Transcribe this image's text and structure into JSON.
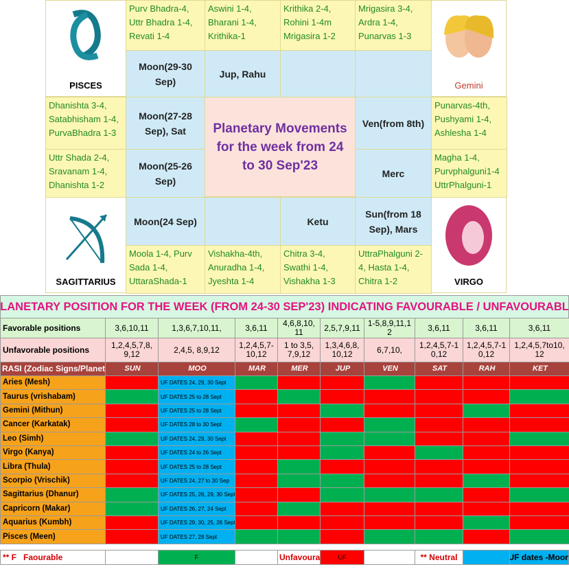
{
  "zodiac_chart": {
    "title": "Planetary Movements for the week from 24 to 30 Sep'23",
    "sign_labels": [
      "PISCES",
      "Gemini",
      "SAGITTARIUS",
      "VIRGO"
    ],
    "nakshatras": [
      "Purv Bhadra-4, Uttr Bhadra 1-4, Revati 1-4",
      "Aswini 1-4, Bharani 1-4, Krithika-1",
      "Krithika 2-4, Rohini 1-4m Mrigasira 1-2",
      "Mrigasira 3-4, Ardra 1-4, Punarvas 1-3",
      "Punarvas-4th, Pushyami 1-4, Ashlesha 1-4",
      "Magha 1-4, Purvphalguni1-4 UttrPhalguni-1",
      "UttraPhalguni 2-4,  Hasta 1-4, Chitra 1-2",
      "Chitra 3-4, Swathi 1-4, Vishakha 1-3",
      "Vishakha-4th, Anuradha 1-4, Jyeshta 1-4",
      "Moola 1-4, Purv Sada 1-4, UttaraShada-1",
      "Uttr Shada 2-4, Sravanam 1-4, Dhanishta 1-2",
      "Dhanishta 3-4, Satabhisham 1-4, PurvaBhadra 1-3"
    ],
    "planets": [
      "Moon(29-30 Sep)",
      "Jup, Rahu",
      "Ven(from 8th)",
      "Merc",
      "Sun(from 18 Sep), Mars",
      "Ketu",
      "Moon(24 Sep)",
      "Moon(25-26 Sep)",
      "Moon(27-28 Sep), Sat"
    ]
  },
  "table": {
    "title": "PLANETARY POSITION FOR THE WEEK (FROM 24-30 SEP'23) INDICATING FAVOURABLE / UNFAVOURABLE",
    "favorable": {
      "label": "Favorable positions",
      "values": [
        "3,6,10,11",
        "1,3,6,7,10,11,",
        "3,6,11",
        "4,6,8,10,11",
        "2,5,7,9,11",
        "1-5,8,9,11,12",
        "3,6,11",
        "3,6,11",
        "3,6,11"
      ]
    },
    "unfavorable": {
      "label": "Unfavorable positions",
      "values": [
        "1,2,4,5,7,8,9,12",
        "2,4,5, 8,9,12",
        "1,2,4,5,7-10,12",
        "1 to 3,5,7,9,12",
        "1,3,4,6,8,10,12",
        "6,7,10,",
        "1,2,4,5,7-10,12",
        "1,2,4,5,7-10,12",
        "1,2,4,5,7to10,12"
      ]
    },
    "header": [
      "RASI (Zodiac Signs/Planets",
      "SUN",
      "MOO",
      "MAR",
      "MER",
      "JUP",
      "VEN",
      "SAT",
      "RAH",
      "KET"
    ],
    "palette": {
      "F": "#00b050",
      "UF": "#ff0000",
      "moon": "#00b0f0"
    },
    "rows": [
      {
        "rasi": "Aries (Mesh)",
        "moon": "UF DATES 24, 29, 30 Sept",
        "status": [
          "UF",
          "F",
          "UF",
          "UF",
          "F",
          "UF",
          "UF",
          "UF"
        ]
      },
      {
        "rasi": "Taurus (vrishabam)",
        "moon": "UF DATES 25 to 28 Sept",
        "status": [
          "F",
          "UF",
          "F",
          "UF",
          "UF",
          "UF",
          "UF",
          "F"
        ]
      },
      {
        "rasi": "Gemini (Mithun)",
        "moon": "UF DATES 25 to 28 Sept",
        "status": [
          "UF",
          "UF",
          "UF",
          "F",
          "UF",
          "UF",
          "F",
          "UF"
        ]
      },
      {
        "rasi": "Cancer (Karkatak)",
        "moon": "UF DATES 28 to 30 Sept",
        "status": [
          "UF",
          "F",
          "UF",
          "UF",
          "F",
          "UF",
          "UF",
          "UF"
        ]
      },
      {
        "rasi": "Leo (Simh)",
        "moon": "UF DATES 24, 29, 30 Sept",
        "status": [
          "F",
          "UF",
          "UF",
          "F",
          "F",
          "UF",
          "UF",
          "F"
        ]
      },
      {
        "rasi": "Virgo (Kanya)",
        "moon": "UF DATES 24 to 26 Sept",
        "status": [
          "UF",
          "UF",
          "UF",
          "F",
          "UF",
          "F",
          "UF",
          "UF"
        ]
      },
      {
        "rasi": "Libra (Thula)",
        "moon": "UF DATES 25 to 28 Sept",
        "status": [
          "UF",
          "UF",
          "F",
          "UF",
          "UF",
          "UF",
          "UF",
          "UF"
        ]
      },
      {
        "rasi": "Scorpio (Vrischik)",
        "moon": "UF DATES 24, 27 to 30 Sep",
        "status": [
          "UF",
          "UF",
          "F",
          "F",
          "UF",
          "UF",
          "F",
          "UF"
        ]
      },
      {
        "rasi": "Sagittarius (Dhanur)",
        "moon": "UF DATES 25, 26, 29, 30 Sept",
        "status": [
          "F",
          "UF",
          "UF",
          "F",
          "F",
          "F",
          "UF",
          "F"
        ]
      },
      {
        "rasi": "Capricorn (Makar)",
        "moon": "UF DATES 26, 27, 24 Sept",
        "status": [
          "F",
          "UF",
          "F",
          "UF",
          "UF",
          "UF",
          "UF",
          "UF"
        ]
      },
      {
        "rasi": "Aquarius (Kumbh)",
        "moon": "UF DATES 29, 30, 25, 26 Sept",
        "status": [
          "UF",
          "UF",
          "UF",
          "UF",
          "UF",
          "UF",
          "F",
          "UF"
        ]
      },
      {
        "rasi": "Pisces (Meen)",
        "moon": "UF DATES 27, 28 Sept",
        "status": [
          "UF",
          "F",
          "F",
          "UF",
          "F",
          "F",
          "UF",
          "F"
        ]
      }
    ],
    "legend": {
      "favourable": "** F   Faourable",
      "f": "F",
      "unfavourable": "Unfavourab",
      "uf": "UF",
      "neutral": "** Neutral",
      "moon": "UF dates -Moon"
    }
  }
}
